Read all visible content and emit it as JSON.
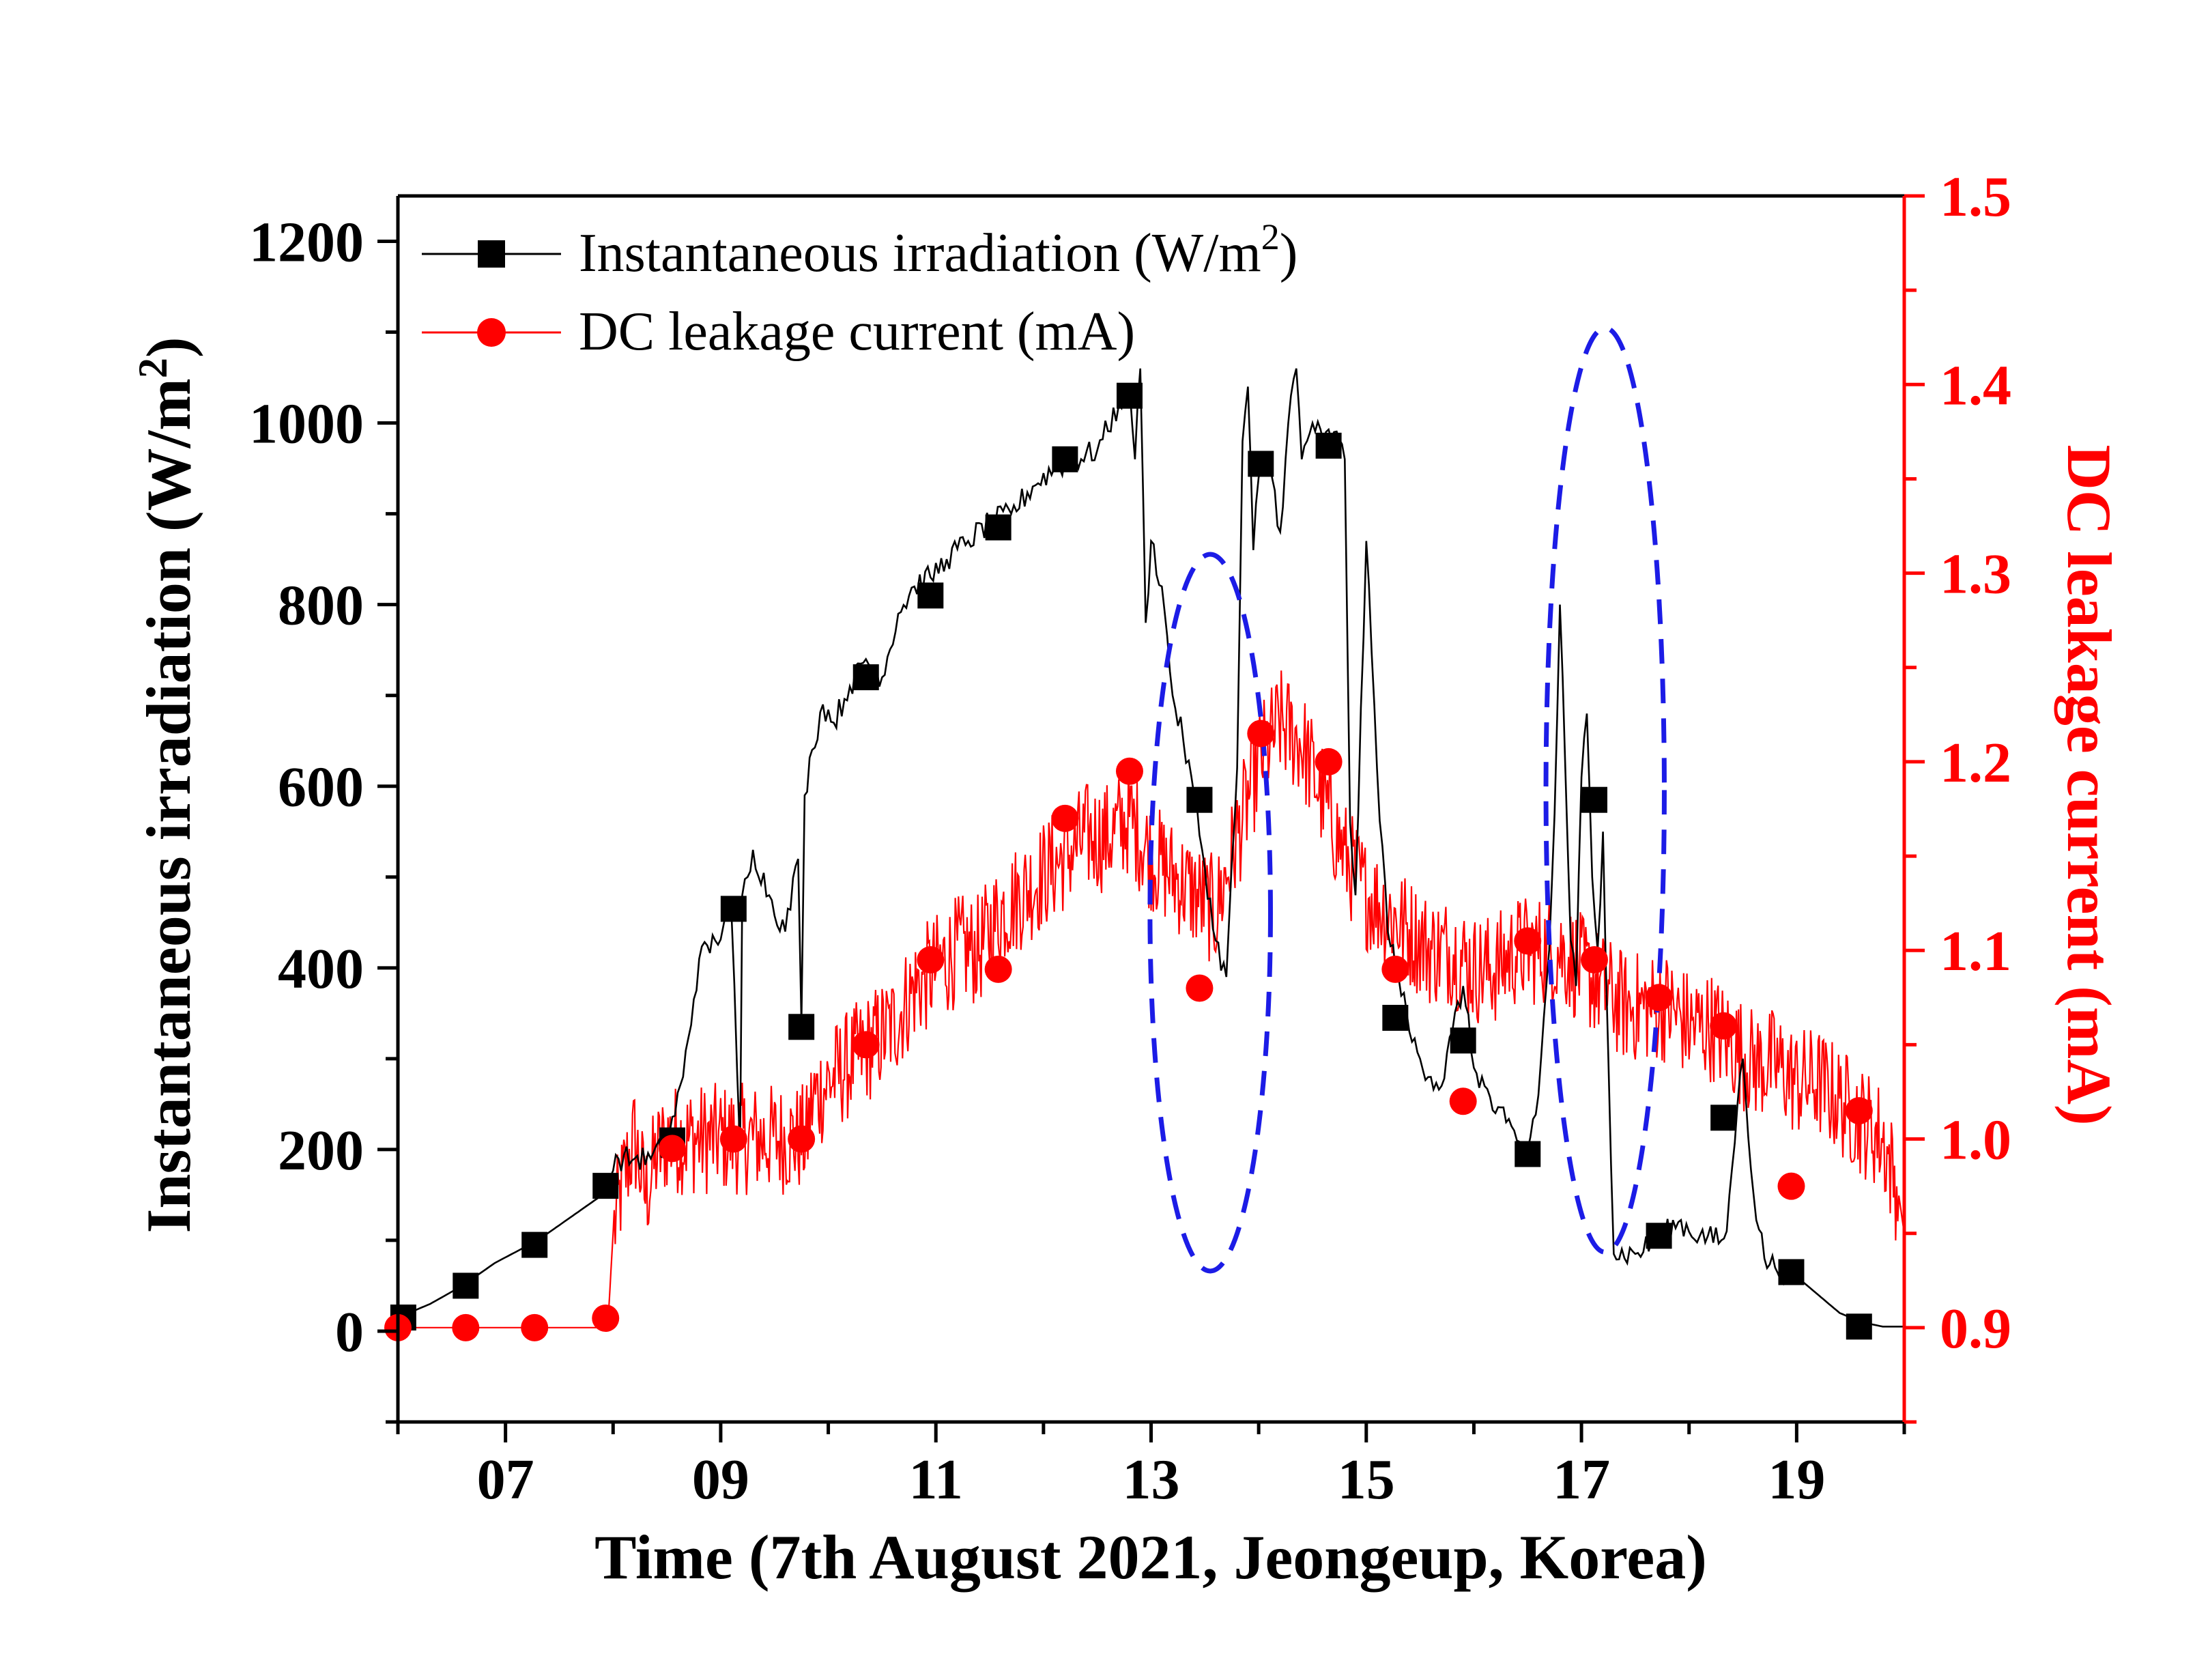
{
  "chart_data": {
    "type": "line",
    "xlabel": "Time (7th August 2021, Jeongeup, Korea)",
    "ylabel_left": {
      "main": "Instantaneous irradiation (W/m",
      "sup": "2",
      "close": ")"
    },
    "ylabel_right": "DC leakage current (mA)",
    "x_ticks": [
      "07",
      "09",
      "11",
      "13",
      "15",
      "17",
      "19"
    ],
    "x_tick_values": [
      7,
      9,
      11,
      13,
      15,
      17,
      19
    ],
    "xlim": [
      6,
      20
    ],
    "y_left_ticks": [
      "0",
      "200",
      "400",
      "600",
      "800",
      "1000",
      "1200"
    ],
    "y_left_tick_values": [
      0,
      200,
      400,
      600,
      800,
      1000,
      1200
    ],
    "y_left_lim": [
      -100,
      1250
    ],
    "y_right_ticks": [
      "0.9",
      "1.0",
      "1.1",
      "1.2",
      "1.3",
      "1.4",
      "1.5"
    ],
    "y_right_tick_values": [
      0.9,
      1.0,
      1.1,
      1.2,
      1.3,
      1.4,
      1.5
    ],
    "y_right_lim": [
      0.85,
      1.5
    ],
    "colors": {
      "irradiation": "#000000",
      "leakage": "#ff0000",
      "highlight": "#1c1ce6"
    },
    "legend": {
      "position": "top-left",
      "irradiation": {
        "main": "Instantaneous irradiation (W/m",
        "sup": "2",
        "close": ")"
      },
      "leakage": "DC leakage current (mA)"
    },
    "series": [
      {
        "name": "Instantaneous irradiation (W/m2)",
        "axis": "left",
        "marker": "square",
        "line_x": [
          6.0,
          6.3,
          6.6,
          6.9,
          7.3,
          7.6,
          7.9,
          8.05,
          8.2,
          8.35,
          8.5,
          8.65,
          8.8,
          8.95,
          9.1,
          9.18,
          9.2,
          9.25,
          9.3,
          9.45,
          9.6,
          9.72,
          9.75,
          9.78,
          9.85,
          9.95,
          10.05,
          10.2,
          10.35,
          10.5,
          10.65,
          10.8,
          10.95,
          11.1,
          11.3,
          11.5,
          11.7,
          11.9,
          12.1,
          12.3,
          12.5,
          12.7,
          12.8,
          12.85,
          12.9,
          12.95,
          13.0,
          13.1,
          13.2,
          13.3,
          13.4,
          13.5,
          13.6,
          13.7,
          13.8,
          13.85,
          13.9,
          13.95,
          14.0,
          14.1,
          14.2,
          14.3,
          14.35,
          14.4,
          14.5,
          14.6,
          14.7,
          14.8,
          14.85,
          14.9,
          15.0,
          15.1,
          15.2,
          15.3,
          15.4,
          15.5,
          15.6,
          15.7,
          15.8,
          15.9,
          16.0,
          16.1,
          16.2,
          16.3,
          16.4,
          16.5,
          16.6,
          16.7,
          16.75,
          16.8,
          16.85,
          16.9,
          16.95,
          17.0,
          17.05,
          17.1,
          17.15,
          17.2,
          17.25,
          17.3,
          17.5,
          17.7,
          17.9,
          18.1,
          18.3,
          18.35,
          18.4,
          18.45,
          18.5,
          18.6,
          18.7,
          18.8,
          18.9,
          19.0,
          19.2,
          19.4,
          19.6,
          19.8,
          20.0
        ],
        "line_y": [
          15,
          30,
          50,
          75,
          100,
          125,
          150,
          190,
          190,
          190,
          205,
          280,
          410,
          430,
          460,
          200,
          480,
          500,
          530,
          480,
          440,
          520,
          340,
          590,
          640,
          690,
          670,
          710,
          740,
          720,
          790,
          820,
          830,
          850,
          870,
          890,
          900,
          930,
          950,
          960,
          970,
          1020,
          1040,
          960,
          1060,
          780,
          870,
          820,
          700,
          650,
          590,
          510,
          430,
          390,
          620,
          980,
          1040,
          860,
          940,
          960,
          880,
          1030,
          1060,
          960,
          1000,
          980,
          990,
          960,
          560,
          480,
          870,
          620,
          440,
          390,
          330,
          300,
          280,
          270,
          330,
          380,
          290,
          270,
          240,
          230,
          210,
          200,
          260,
          420,
          570,
          800,
          620,
          430,
          380,
          610,
          680,
          500,
          420,
          550,
          300,
          85,
          85,
          100,
          120,
          105,
          100,
          110,
          180,
          250,
          300,
          150,
          80,
          70,
          65,
          60,
          40,
          20,
          10,
          5,
          5
        ]
      },
      {
        "name": "DC leakage current (mA)",
        "axis": "right",
        "marker": "circle",
        "line_x": [
          6.0,
          6.5,
          7.0,
          7.5,
          7.95,
          8.0,
          8.1,
          8.2,
          8.3,
          8.4,
          8.5,
          8.6,
          8.8,
          9.0,
          9.2,
          9.4,
          9.6,
          9.8,
          9.85,
          10.0,
          10.2,
          10.4,
          10.6,
          10.8,
          11.0,
          11.2,
          11.4,
          11.6,
          11.8,
          12.0,
          12.2,
          12.4,
          12.6,
          12.8,
          13.0,
          13.2,
          13.4,
          13.6,
          13.8,
          14.0,
          14.2,
          14.4,
          14.6,
          14.8,
          15.0,
          15.2,
          15.4,
          15.6,
          15.8,
          16.0,
          16.2,
          16.4,
          16.6,
          16.8,
          17.0,
          17.2,
          17.4,
          17.6,
          17.8,
          18.0,
          18.2,
          18.4,
          18.6,
          18.8,
          19.0,
          19.2,
          19.4,
          19.6,
          19.8,
          19.95,
          20.0
        ],
        "line_y": [
          0.9,
          0.9,
          0.9,
          0.9,
          0.9,
          0.95,
          0.98,
          1.0,
          0.97,
          0.99,
          1.0,
          1.0,
          1.0,
          1.0,
          1.0,
          1.0,
          1.0,
          1.0,
          1.02,
          1.03,
          1.04,
          1.05,
          1.06,
          1.08,
          1.09,
          1.1,
          1.1,
          1.12,
          1.13,
          1.14,
          1.15,
          1.16,
          1.16,
          1.17,
          1.15,
          1.14,
          1.13,
          1.12,
          1.16,
          1.2,
          1.22,
          1.21,
          1.18,
          1.15,
          1.13,
          1.12,
          1.11,
          1.1,
          1.1,
          1.09,
          1.09,
          1.1,
          1.1,
          1.1,
          1.09,
          1.08,
          1.07,
          1.07,
          1.07,
          1.06,
          1.06,
          1.05,
          1.04,
          1.04,
          1.03,
          1.03,
          1.02,
          1.01,
          1.0,
          0.97,
          0.95
        ],
        "noise_start_x": 8.0,
        "noise_amplitude": 0.03
      }
    ],
    "markers_irradiation": {
      "x": [
        6.05,
        6.63,
        7.27,
        7.93,
        8.55,
        9.12,
        9.75,
        10.35,
        10.95,
        11.58,
        12.2,
        12.8,
        13.45,
        14.02,
        14.65,
        15.27,
        15.9,
        16.5,
        17.12,
        17.72,
        18.32,
        18.95,
        19.58
      ],
      "y": [
        15,
        50,
        95,
        160,
        210,
        465,
        335,
        720,
        810,
        885,
        960,
        1030,
        585,
        955,
        975,
        345,
        320,
        195,
        585,
        105,
        235,
        65,
        5
      ]
    },
    "markers_leakage": {
      "x": [
        6.0,
        6.63,
        7.27,
        7.93,
        8.55,
        9.12,
        9.75,
        10.35,
        10.95,
        11.58,
        12.2,
        12.8,
        13.45,
        14.02,
        14.65,
        15.27,
        15.9,
        16.5,
        17.12,
        17.72,
        18.32,
        18.95,
        19.58
      ],
      "y": [
        0.9,
        0.9,
        0.9,
        0.905,
        0.995,
        1.0,
        1.0,
        1.05,
        1.095,
        1.09,
        1.17,
        1.195,
        1.08,
        1.215,
        1.2,
        1.09,
        1.02,
        1.105,
        1.095,
        1.075,
        1.06,
        0.975,
        1.015
      ]
    },
    "highlights": [
      {
        "cx": 13.55,
        "cy": 1.12,
        "rx": 0.56,
        "ry": 0.19
      },
      {
        "cx": 17.22,
        "cy": 1.185,
        "rx": 0.55,
        "ry": 0.245
      }
    ]
  }
}
